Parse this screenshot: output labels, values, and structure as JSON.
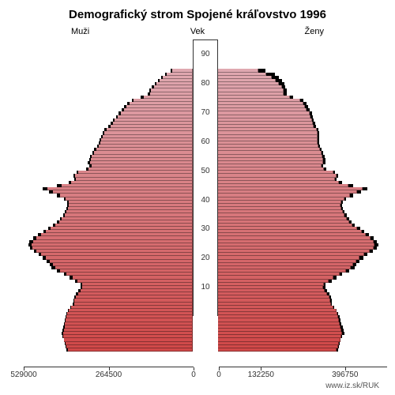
{
  "title": "Demografický strom Spojené kráľovstvo 1996",
  "labels": {
    "male": "Muži",
    "age": "Vek",
    "female": "Ženy"
  },
  "source": "www.iz.sk/RUK",
  "chart": {
    "type": "population-pyramid",
    "background_color": "#ffffff",
    "bar_border_color": "#333333",
    "max_age": 95,
    "color_top": "#dfa8b0",
    "color_bottom": "#d04848",
    "black_color": "#000000",
    "axis_color": "#333333",
    "male_max": 529000,
    "female_max": 529000,
    "x_ticks_male": [
      529000,
      264500,
      0
    ],
    "x_ticks_female": [
      0,
      132250,
      396750
    ],
    "x_tick_labels_male": [
      "529000",
      "264500",
      "0"
    ],
    "x_tick_labels_female": [
      "0",
      "132250",
      "396750"
    ],
    "y_ticks": [
      10,
      20,
      30,
      40,
      50,
      60,
      70,
      80,
      90
    ],
    "data": [
      {
        "age": 0,
        "m": 390000,
        "mb": 396000,
        "f": 370000,
        "fb": 376000
      },
      {
        "age": 1,
        "m": 395000,
        "mb": 398000,
        "f": 375000,
        "fb": 378000
      },
      {
        "age": 2,
        "m": 398000,
        "mb": 400000,
        "f": 378000,
        "fb": 380000
      },
      {
        "age": 3,
        "m": 402000,
        "mb": 403000,
        "f": 382000,
        "fb": 383000
      },
      {
        "age": 4,
        "m": 405000,
        "mb": 407000,
        "f": 385000,
        "fb": 387000
      },
      {
        "age": 5,
        "m": 405000,
        "mb": 410000,
        "f": 388000,
        "fb": 395000
      },
      {
        "age": 6,
        "m": 402000,
        "mb": 408000,
        "f": 385000,
        "fb": 393000
      },
      {
        "age": 7,
        "m": 400000,
        "mb": 405000,
        "f": 383000,
        "fb": 390000
      },
      {
        "age": 8,
        "m": 400000,
        "mb": 402000,
        "f": 381000,
        "fb": 385000
      },
      {
        "age": 9,
        "m": 398000,
        "mb": 400000,
        "f": 379000,
        "fb": 383000
      },
      {
        "age": 10,
        "m": 395000,
        "mb": 398000,
        "f": 376000,
        "fb": 380000
      },
      {
        "age": 11,
        "m": 393000,
        "mb": 395000,
        "f": 374000,
        "fb": 376000
      },
      {
        "age": 12,
        "m": 388000,
        "mb": 390000,
        "f": 370000,
        "fb": 372000
      },
      {
        "age": 13,
        "m": 380000,
        "mb": 383000,
        "f": 361000,
        "fb": 364000
      },
      {
        "age": 14,
        "m": 372000,
        "mb": 375000,
        "f": 353000,
        "fb": 357000
      },
      {
        "age": 15,
        "m": 370000,
        "mb": 373000,
        "f": 352000,
        "fb": 355000
      },
      {
        "age": 16,
        "m": 365000,
        "mb": 370000,
        "f": 348000,
        "fb": 353000
      },
      {
        "age": 17,
        "m": 358000,
        "mb": 365000,
        "f": 341000,
        "fb": 348000
      },
      {
        "age": 18,
        "m": 350000,
        "mb": 358000,
        "f": 334000,
        "fb": 342000
      },
      {
        "age": 19,
        "m": 345000,
        "mb": 352000,
        "f": 330000,
        "fb": 337000
      },
      {
        "age": 20,
        "m": 345000,
        "mb": 350000,
        "f": 332000,
        "fb": 337000
      },
      {
        "age": 21,
        "m": 360000,
        "mb": 368000,
        "f": 347000,
        "fb": 355000
      },
      {
        "age": 22,
        "m": 375000,
        "mb": 385000,
        "f": 362000,
        "fb": 372000
      },
      {
        "age": 23,
        "m": 395000,
        "mb": 403000,
        "f": 380000,
        "fb": 388000
      },
      {
        "age": 24,
        "m": 415000,
        "mb": 425000,
        "f": 400000,
        "fb": 410000
      },
      {
        "age": 25,
        "m": 430000,
        "mb": 442000,
        "f": 415000,
        "fb": 427000
      },
      {
        "age": 26,
        "m": 437000,
        "mb": 448000,
        "f": 422000,
        "fb": 433000
      },
      {
        "age": 27,
        "m": 448000,
        "mb": 458000,
        "f": 433000,
        "fb": 443000
      },
      {
        "age": 28,
        "m": 460000,
        "mb": 470000,
        "f": 443000,
        "fb": 454000
      },
      {
        "age": 29,
        "m": 475000,
        "mb": 482000,
        "f": 458000,
        "fb": 466000
      },
      {
        "age": 30,
        "m": 490000,
        "mb": 497000,
        "f": 475000,
        "fb": 485000
      },
      {
        "age": 31,
        "m": 501000,
        "mb": 510000,
        "f": 486000,
        "fb": 498000
      },
      {
        "age": 32,
        "m": 505000,
        "mb": 515000,
        "f": 490000,
        "fb": 502000
      },
      {
        "age": 33,
        "m": 500000,
        "mb": 512000,
        "f": 486000,
        "fb": 498000
      },
      {
        "age": 34,
        "m": 490000,
        "mb": 500000,
        "f": 477000,
        "fb": 488000
      },
      {
        "age": 35,
        "m": 475000,
        "mb": 485000,
        "f": 463000,
        "fb": 473000
      },
      {
        "age": 36,
        "m": 460000,
        "mb": 468000,
        "f": 450000,
        "fb": 458000
      },
      {
        "age": 37,
        "m": 445000,
        "mb": 453000,
        "f": 436000,
        "fb": 444000
      },
      {
        "age": 38,
        "m": 430000,
        "mb": 437000,
        "f": 421000,
        "fb": 428000
      },
      {
        "age": 39,
        "m": 418000,
        "mb": 425000,
        "f": 411000,
        "fb": 418000
      },
      {
        "age": 40,
        "m": 410000,
        "mb": 416000,
        "f": 404000,
        "fb": 410000
      },
      {
        "age": 41,
        "m": 400000,
        "mb": 406000,
        "f": 396000,
        "fb": 402000
      },
      {
        "age": 42,
        "m": 395000,
        "mb": 400000,
        "f": 391000,
        "fb": 396000
      },
      {
        "age": 43,
        "m": 390000,
        "mb": 395000,
        "f": 386000,
        "fb": 390000
      },
      {
        "age": 44,
        "m": 388000,
        "mb": 392000,
        "f": 384000,
        "fb": 388000
      },
      {
        "age": 45,
        "m": 388000,
        "mb": 392000,
        "f": 386000,
        "fb": 390000
      },
      {
        "age": 46,
        "m": 397000,
        "mb": 403000,
        "f": 395000,
        "fb": 401000
      },
      {
        "age": 47,
        "m": 415000,
        "mb": 425000,
        "f": 413000,
        "fb": 422000
      },
      {
        "age": 48,
        "m": 437000,
        "mb": 450000,
        "f": 435000,
        "fb": 448000
      },
      {
        "age": 49,
        "m": 455000,
        "mb": 469000,
        "f": 453000,
        "fb": 466000
      },
      {
        "age": 50,
        "m": 410000,
        "mb": 425000,
        "f": 408000,
        "fb": 423000
      },
      {
        "age": 51,
        "m": 380000,
        "mb": 389000,
        "f": 379000,
        "fb": 388000
      },
      {
        "age": 52,
        "m": 365000,
        "mb": 371000,
        "f": 366000,
        "fb": 372000
      },
      {
        "age": 53,
        "m": 368000,
        "mb": 373000,
        "f": 370000,
        "fb": 375000
      },
      {
        "age": 54,
        "m": 358000,
        "mb": 364000,
        "f": 361000,
        "fb": 367000
      },
      {
        "age": 55,
        "m": 326000,
        "mb": 333000,
        "f": 332000,
        "fb": 339000
      },
      {
        "age": 56,
        "m": 317000,
        "mb": 323000,
        "f": 324000,
        "fb": 330000
      },
      {
        "age": 57,
        "m": 322000,
        "mb": 328000,
        "f": 330000,
        "fb": 336000
      },
      {
        "age": 58,
        "m": 318000,
        "mb": 325000,
        "f": 328000,
        "fb": 335000
      },
      {
        "age": 59,
        "m": 316000,
        "mb": 322000,
        "f": 327000,
        "fb": 333000
      },
      {
        "age": 60,
        "m": 310000,
        "mb": 315000,
        "f": 324000,
        "fb": 329000
      },
      {
        "age": 61,
        "m": 302000,
        "mb": 308000,
        "f": 319000,
        "fb": 325000
      },
      {
        "age": 62,
        "m": 295000,
        "mb": 300000,
        "f": 314000,
        "fb": 319000
      },
      {
        "age": 63,
        "m": 290000,
        "mb": 295000,
        "f": 312000,
        "fb": 317000
      },
      {
        "age": 64,
        "m": 287000,
        "mb": 292000,
        "f": 312000,
        "fb": 317000
      },
      {
        "age": 65,
        "m": 283000,
        "mb": 288000,
        "f": 312000,
        "fb": 317000
      },
      {
        "age": 66,
        "m": 277000,
        "mb": 282000,
        "f": 311000,
        "fb": 316000
      },
      {
        "age": 67,
        "m": 270000,
        "mb": 276000,
        "f": 308000,
        "fb": 314000
      },
      {
        "age": 68,
        "m": 258000,
        "mb": 264000,
        "f": 300000,
        "fb": 307000
      },
      {
        "age": 69,
        "m": 250000,
        "mb": 257000,
        "f": 296000,
        "fb": 304000
      },
      {
        "age": 70,
        "m": 244000,
        "mb": 250000,
        "f": 293000,
        "fb": 300000
      },
      {
        "age": 71,
        "m": 235000,
        "mb": 241000,
        "f": 290000,
        "fb": 297000
      },
      {
        "age": 72,
        "m": 226000,
        "mb": 233000,
        "f": 286000,
        "fb": 294000
      },
      {
        "age": 73,
        "m": 216000,
        "mb": 223000,
        "f": 278000,
        "fb": 287000
      },
      {
        "age": 74,
        "m": 207000,
        "mb": 215000,
        "f": 273000,
        "fb": 283000
      },
      {
        "age": 75,
        "m": 197000,
        "mb": 205000,
        "f": 267000,
        "fb": 277000
      },
      {
        "age": 76,
        "m": 185000,
        "mb": 191000,
        "f": 257000,
        "fb": 268000
      },
      {
        "age": 77,
        "m": 154000,
        "mb": 162000,
        "f": 226000,
        "fb": 236000
      },
      {
        "age": 78,
        "m": 134000,
        "mb": 142000,
        "f": 206000,
        "fb": 216000
      },
      {
        "age": 79,
        "m": 130000,
        "mb": 137000,
        "f": 205000,
        "fb": 216000
      },
      {
        "age": 80,
        "m": 121000,
        "mb": 128000,
        "f": 199000,
        "fb": 211000
      },
      {
        "age": 81,
        "m": 113000,
        "mb": 119000,
        "f": 191000,
        "fb": 208000
      },
      {
        "age": 82,
        "m": 103000,
        "mb": 110000,
        "f": 180000,
        "fb": 200000
      },
      {
        "age": 83,
        "m": 93000,
        "mb": 98000,
        "f": 167000,
        "fb": 190000
      },
      {
        "age": 84,
        "m": 82000,
        "mb": 87000,
        "f": 152000,
        "fb": 178000
      },
      {
        "age": 85,
        "m": 65000,
        "mb": 70000,
        "f": 125000,
        "fb": 148000
      }
    ]
  }
}
